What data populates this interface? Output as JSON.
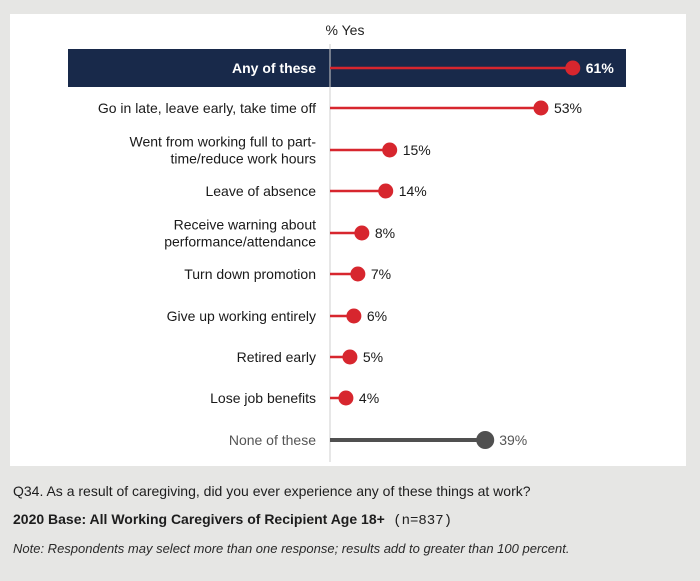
{
  "chart_data": {
    "type": "lollipop",
    "orientation": "horizontal",
    "title": "% Yes",
    "categories": [
      "Any of these",
      "Go in late, leave early, take time off",
      "Went from working full to part-time/reduce work hours",
      "Leave of absence",
      "Receive warning about performance/attendance",
      "Turn down promotion",
      "Give up working entirely",
      "Retired early",
      "Lose job benefits",
      "None of these"
    ],
    "category_lines": [
      [
        "Any of these"
      ],
      [
        "Go in late, leave early, take time off"
      ],
      [
        "Went from working full to part-",
        "time/reduce work hours"
      ],
      [
        "Leave of absence"
      ],
      [
        "Receive warning about",
        "performance/attendance"
      ],
      [
        "Turn down promotion"
      ],
      [
        "Give up working entirely"
      ],
      [
        "Retired early"
      ],
      [
        "Lose job benefits"
      ],
      [
        "None of these"
      ]
    ],
    "values": [
      61,
      53,
      15,
      14,
      8,
      7,
      6,
      5,
      4,
      39
    ],
    "value_labels": [
      "61%",
      "53%",
      "15%",
      "14%",
      "8%",
      "7%",
      "6%",
      "5%",
      "4%",
      "39%"
    ],
    "highlight_index": 0,
    "muted_index": 9,
    "xlim": [
      0,
      70
    ],
    "colors": {
      "series": "#d7262e",
      "muted": "#505050",
      "highlight_bg": "#18294a",
      "highlight_text": "#ffffff",
      "label_text": "#1a1a1a",
      "muted_text": "#555555",
      "axis": "#cfcfcf"
    }
  },
  "footer": {
    "question": "Q34.  As a result of caregiving, did you ever experience any of these things at work?",
    "base_bold": "2020 Base: All Working Caregivers of Recipient Age 18+",
    "base_rest": " (n=837)",
    "note": "Note: Respondents may select more than one response; results add to greater than 100 percent."
  }
}
